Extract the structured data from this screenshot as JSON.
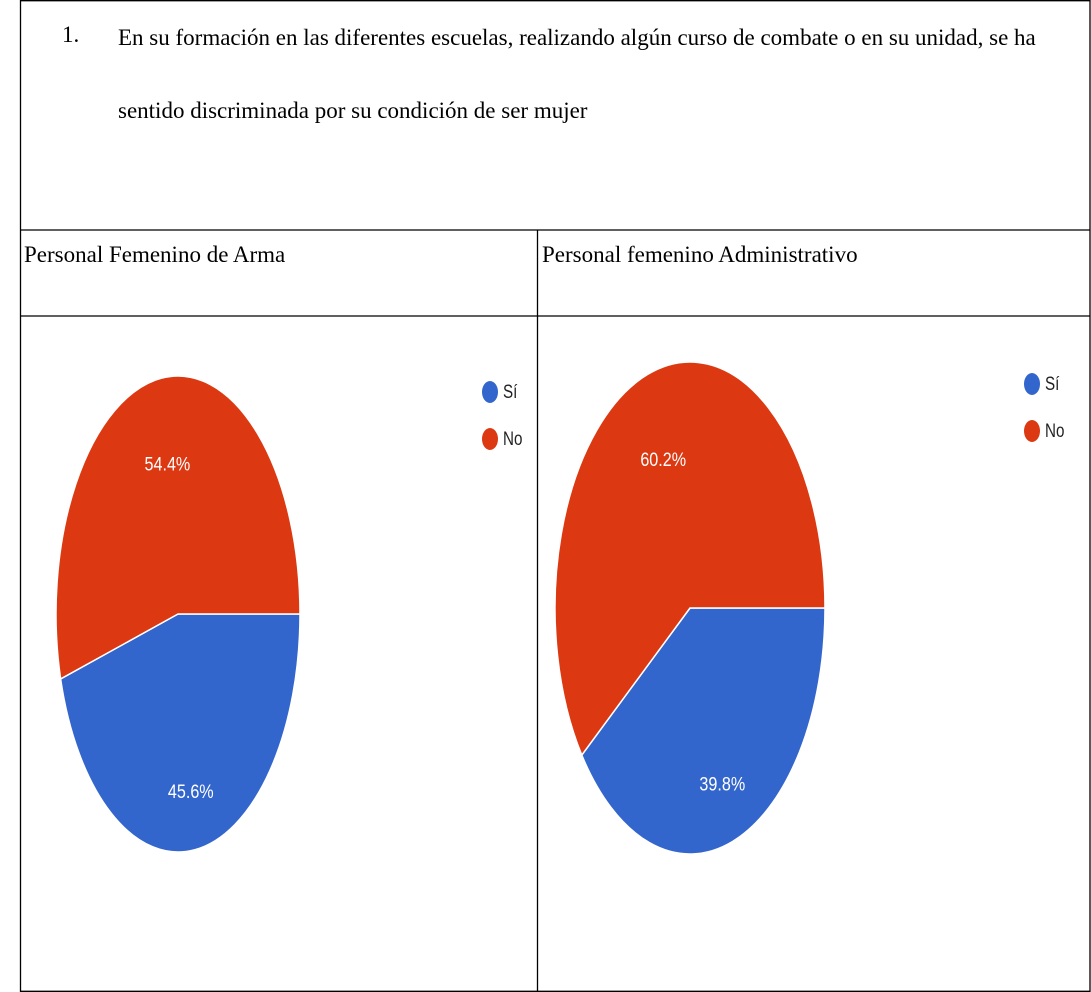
{
  "question": {
    "number": "1.",
    "text": "En su formación en las diferentes escuelas, realizando algún curso de combate o en su unidad, se ha sentido discriminada por su condición de ser mujer"
  },
  "table": {
    "headers": [
      "Personal Femenino de Arma",
      "Personal femenino Administrativo"
    ]
  },
  "chart_data": [
    {
      "type": "pie",
      "categories": [
        "Sí",
        "No"
      ],
      "values": [
        45.6,
        54.4
      ],
      "value_labels": [
        "45.6%",
        "54.4%"
      ],
      "colors": [
        "#3366cc",
        "#dc3912"
      ],
      "legend": "top-right"
    },
    {
      "type": "pie",
      "categories": [
        "Sí",
        "No"
      ],
      "values": [
        39.8,
        60.2
      ],
      "value_labels": [
        "39.8%",
        "60.2%"
      ],
      "colors": [
        "#3366cc",
        "#dc3912"
      ],
      "legend": "top-right"
    }
  ]
}
